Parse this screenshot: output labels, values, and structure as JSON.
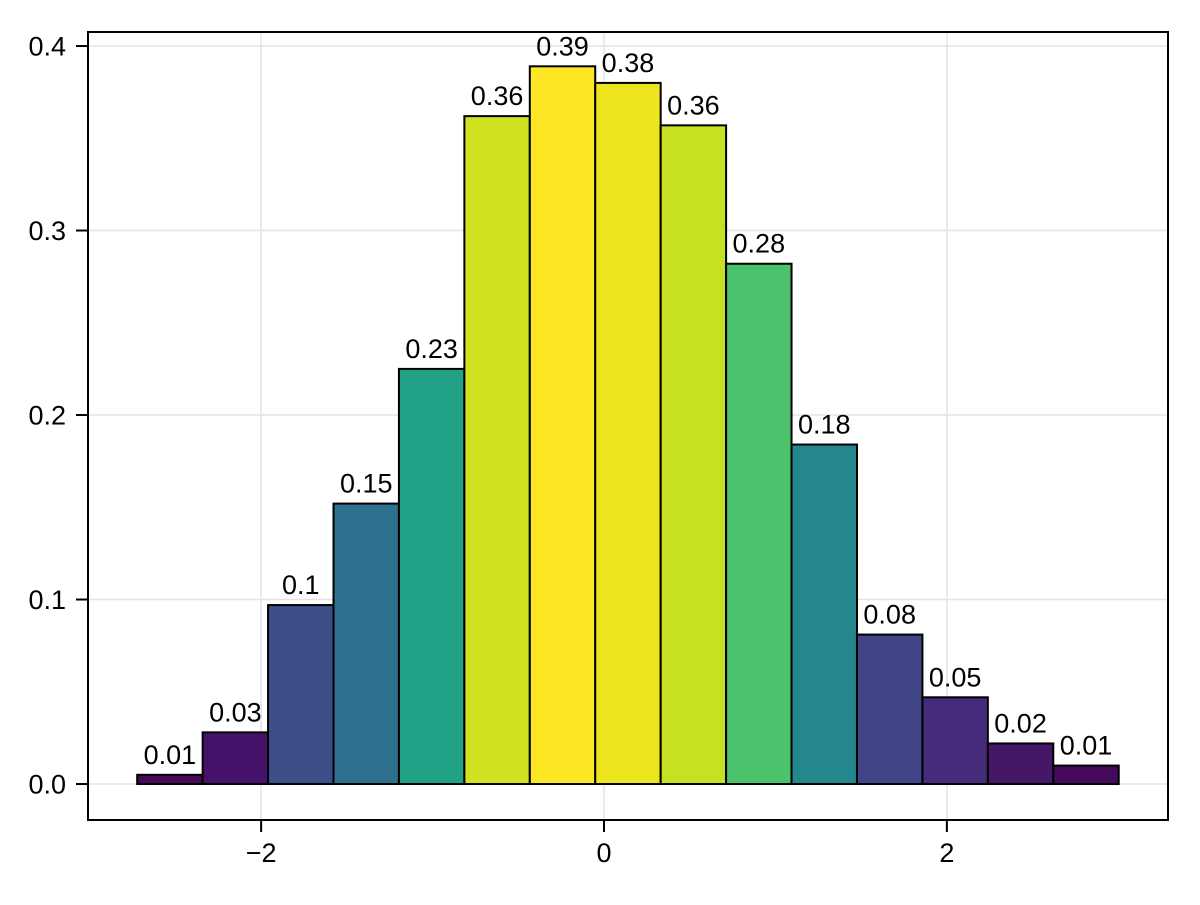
{
  "chart_data": {
    "type": "bar",
    "subtype": "histogram",
    "title": "",
    "xlabel": "",
    "ylabel": "",
    "x_bin_start": -2.723,
    "x_bin_width": 0.3817,
    "values": [
      0.005,
      0.028,
      0.097,
      0.152,
      0.225,
      0.362,
      0.389,
      0.38,
      0.357,
      0.282,
      0.184,
      0.081,
      0.047,
      0.022,
      0.01
    ],
    "bar_labels": [
      "0.01",
      "0.03",
      "0.1",
      "0.15",
      "0.23",
      "0.36",
      "0.39",
      "0.38",
      "0.36",
      "0.28",
      "0.18",
      "0.08",
      "0.05",
      "0.02",
      "0.01"
    ],
    "bar_colors": [
      "#440a58",
      "#461269",
      "#3d4f89",
      "#2d718e",
      "#21a186",
      "#d0e120",
      "#fde725",
      "#ece51e",
      "#c6e022",
      "#4dc26c",
      "#24878e",
      "#414588",
      "#462b7a",
      "#451767",
      "#45095b"
    ],
    "bar_stroke_color": "#000000",
    "colormap": "viridis",
    "legend": "none",
    "grid": true,
    "grid_color": "#e3e3e3",
    "frame_color": "#000000",
    "text_color": "#000000",
    "background_color": "#ffffff",
    "xlim": [
      -3.01,
      3.29
    ],
    "ylim": [
      -0.0195,
      0.4076
    ],
    "x_ticks": [
      {
        "value": -2,
        "label": "−2"
      },
      {
        "value": 0,
        "label": "0"
      },
      {
        "value": 2,
        "label": "2"
      }
    ],
    "y_ticks": [
      {
        "value": 0.0,
        "label": "0.0"
      },
      {
        "value": 0.1,
        "label": "0.1"
      },
      {
        "value": 0.2,
        "label": "0.2"
      },
      {
        "value": 0.3,
        "label": "0.3"
      },
      {
        "value": 0.4,
        "label": "0.4"
      }
    ]
  }
}
